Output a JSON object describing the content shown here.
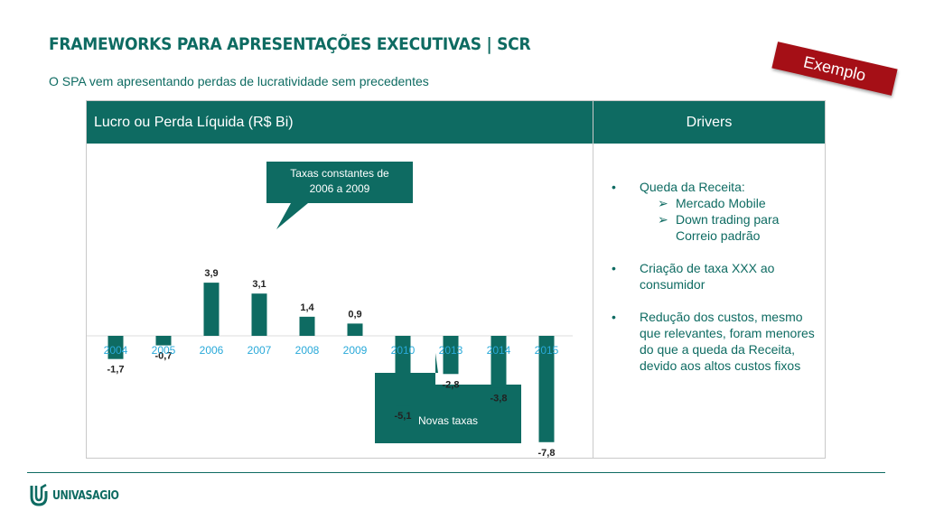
{
  "title": "FRAMEWORKS PARA APRESENTAÇÕES EXECUTIVAS | SCR",
  "subtitle": "O SPA vem apresentando perdas de lucratividade sem precedentes",
  "stamp": "Exemplo",
  "left_panel": {
    "header": "Lucro ou Perda Líquida (R$ Bi)"
  },
  "right_panel": {
    "header": "Drivers"
  },
  "callouts": {
    "top": [
      "Taxas constantes de",
      "2006 a 2009"
    ],
    "bottom": "Novas taxas"
  },
  "drivers": [
    {
      "text": "Queda da Receita:",
      "sub": [
        {
          "lines": [
            "Mercado Mobile"
          ]
        },
        {
          "lines": [
            "Down trading para",
            "Correio padrão"
          ]
        }
      ]
    },
    {
      "text": "Criação de taxa XXX ao consumidor",
      "sub": []
    },
    {
      "text": "Redução dos custos, mesmo que relevantes, foram menores do que a queda da Receita, devido aos altos custos fixos",
      "sub": []
    }
  ],
  "logo": {
    "text": "UNIVASAGIO"
  },
  "colors": {
    "brand": "#0e6b62",
    "stamp": "#a50f16",
    "year_label": "#29a9d9"
  },
  "chart_data": {
    "type": "bar",
    "title": "Lucro ou Perda Líquida (R$ Bi)",
    "categories": [
      "2004",
      "2005",
      "2006",
      "2007",
      "2008",
      "2009",
      "2010",
      "2013",
      "2014",
      "2015"
    ],
    "values": [
      -1.7,
      -0.7,
      3.9,
      3.1,
      1.4,
      0.9,
      -5.1,
      -2.8,
      -3.8,
      -7.8
    ],
    "value_labels": [
      "-1,7",
      "-0,7",
      "3,9",
      "3,1",
      "1,4",
      "0,9",
      "-5,1",
      "-2,8",
      "-3,8",
      "-7,8"
    ],
    "xlabel": "",
    "ylabel": "",
    "ylim": [
      -7.8,
      3.9
    ],
    "grid": false
  }
}
